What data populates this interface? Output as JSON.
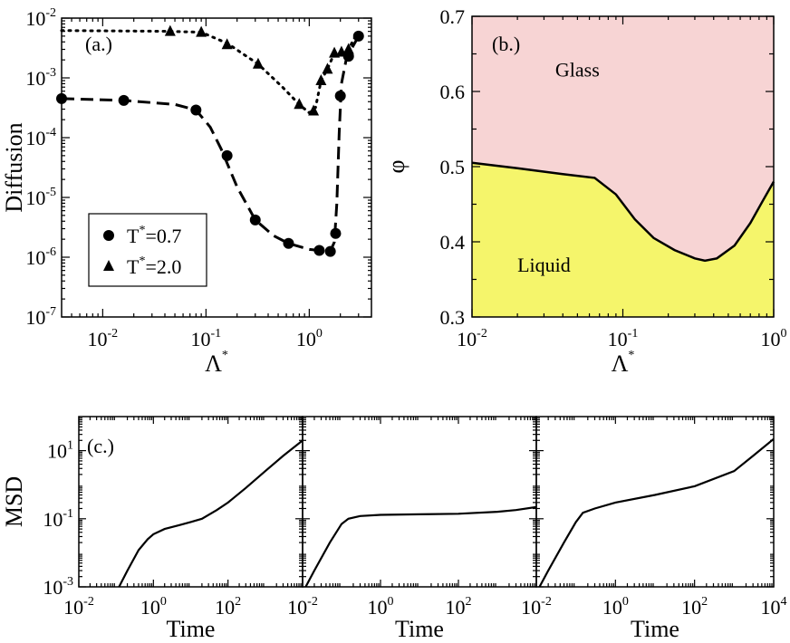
{
  "chart_data": [
    {
      "panel": "a",
      "type": "scatter",
      "label": "(a.)",
      "xlabel": "Λ",
      "xlabel_sup": "*",
      "ylabel": "Diffusion",
      "xscale": "log",
      "yscale": "log",
      "xlim": [
        0.004,
        4
      ],
      "ylim": [
        1e-07,
        0.01
      ],
      "xticks": [
        {
          "value": 0.01,
          "base": "10",
          "exp": "-2"
        },
        {
          "value": 0.1,
          "base": "10",
          "exp": "-1"
        },
        {
          "value": 1,
          "base": "10",
          "exp": "0"
        }
      ],
      "yticks": [
        {
          "value": 1e-07,
          "base": "10",
          "exp": "-7"
        },
        {
          "value": 1e-06,
          "base": "10",
          "exp": "-6"
        },
        {
          "value": 1e-05,
          "base": "10",
          "exp": "-5"
        },
        {
          "value": 0.0001,
          "base": "10",
          "exp": "-4"
        },
        {
          "value": 0.001,
          "base": "10",
          "exp": "-3"
        },
        {
          "value": 0.01,
          "base": "10",
          "exp": "-2"
        }
      ],
      "legend": {
        "placement": "bottom-left"
      },
      "series": [
        {
          "name": "T*=0.7",
          "legend_base": "T",
          "legend_sup": "*",
          "legend_rest": "=0.7",
          "marker": "circle",
          "line": "dashed",
          "points": [
            [
              0.004,
              0.00045
            ],
            [
              0.016,
              0.00042
            ],
            [
              0.08,
              0.00029
            ],
            [
              0.16,
              5e-05
            ],
            [
              0.3,
              4.2e-06
            ],
            [
              0.63,
              1.7e-06
            ],
            [
              1.25,
              1.3e-06
            ],
            [
              1.6,
              1.25e-06
            ],
            [
              1.8,
              2.5e-06
            ],
            [
              2.0,
              0.0005
            ],
            [
              2.4,
              0.0023
            ],
            [
              3.0,
              0.005
            ]
          ],
          "curve": [
            [
              0.004,
              0.00045
            ],
            [
              0.016,
              0.00042
            ],
            [
              0.05,
              0.00036
            ],
            [
              0.08,
              0.00029
            ],
            [
              0.11,
              0.00015
            ],
            [
              0.14,
              6.5e-05
            ],
            [
              0.2,
              1.5e-05
            ],
            [
              0.3,
              4.2e-06
            ],
            [
              0.45,
              2.3e-06
            ],
            [
              0.63,
              1.7e-06
            ],
            [
              1.0,
              1.35e-06
            ],
            [
              1.25,
              1.3e-06
            ],
            [
              1.6,
              1.25e-06
            ],
            [
              1.75,
              1.8e-06
            ],
            [
              1.85,
              8e-06
            ],
            [
              1.95,
              0.00012
            ],
            [
              2.05,
              0.0008
            ],
            [
              2.3,
              0.0022
            ],
            [
              2.6,
              0.0032
            ],
            [
              3.0,
              0.005
            ]
          ]
        },
        {
          "name": "T*=2.0",
          "legend_base": "T",
          "legend_sup": "*",
          "legend_rest": "=2.0",
          "marker": "triangle",
          "line": "dotted",
          "points": [
            [
              0.045,
              0.006
            ],
            [
              0.09,
              0.0058
            ],
            [
              0.16,
              0.0036
            ],
            [
              0.32,
              0.0017
            ],
            [
              0.8,
              0.00036
            ],
            [
              1.1,
              0.00028
            ],
            [
              1.3,
              0.0009
            ],
            [
              1.5,
              0.0014
            ],
            [
              1.75,
              0.0026
            ],
            [
              2.05,
              0.0027
            ],
            [
              2.4,
              0.003
            ]
          ],
          "curve": [
            [
              0.004,
              0.0062
            ],
            [
              0.045,
              0.006
            ],
            [
              0.09,
              0.0058
            ],
            [
              0.16,
              0.0038
            ],
            [
              0.32,
              0.0017
            ],
            [
              0.55,
              0.0007
            ],
            [
              0.8,
              0.00036
            ],
            [
              1.0,
              0.00026
            ],
            [
              1.15,
              0.00032
            ],
            [
              1.3,
              0.0009
            ],
            [
              1.5,
              0.0014
            ],
            [
              1.75,
              0.0026
            ],
            [
              2.05,
              0.0027
            ],
            [
              2.4,
              0.003
            ],
            [
              2.8,
              0.005
            ]
          ]
        }
      ]
    },
    {
      "panel": "b",
      "type": "area",
      "label": "(b.)",
      "xlabel": "Λ",
      "xlabel_sup": "*",
      "ylabel": "φ",
      "xscale": "log",
      "yscale": "linear",
      "xlim": [
        0.01,
        1
      ],
      "ylim": [
        0.3,
        0.7
      ],
      "xticks": [
        {
          "value": 0.01,
          "base": "10",
          "exp": "-2"
        },
        {
          "value": 0.1,
          "base": "10",
          "exp": "-1"
        },
        {
          "value": 1,
          "base": "10",
          "exp": "0"
        }
      ],
      "yticks": [
        "0.3",
        "0.4",
        "0.5",
        "0.6",
        "0.7"
      ],
      "regions": [
        {
          "name": "Glass",
          "label": "Glass",
          "color": "#f7d4d4",
          "position": [
            0.05,
            0.62
          ]
        },
        {
          "name": "Liquid",
          "label": "Liquid",
          "color": "#f5f56b",
          "position": [
            0.03,
            0.36
          ]
        }
      ],
      "boundary": [
        [
          0.01,
          0.505
        ],
        [
          0.02,
          0.498
        ],
        [
          0.04,
          0.49
        ],
        [
          0.065,
          0.485
        ],
        [
          0.09,
          0.463
        ],
        [
          0.12,
          0.43
        ],
        [
          0.16,
          0.405
        ],
        [
          0.22,
          0.389
        ],
        [
          0.3,
          0.378
        ],
        [
          0.35,
          0.375
        ],
        [
          0.42,
          0.378
        ],
        [
          0.55,
          0.395
        ],
        [
          0.7,
          0.425
        ],
        [
          0.85,
          0.455
        ],
        [
          1.0,
          0.48
        ]
      ]
    },
    {
      "panel": "c",
      "type": "line",
      "label": "(c.)",
      "ylabel": "MSD",
      "xlabel": "Time",
      "xscale": "log",
      "yscale": "log",
      "xlim": [
        0.01,
        10000
      ],
      "ylim": [
        0.001,
        100
      ],
      "yticks": [
        {
          "value": 0.001,
          "base": "10",
          "exp": "-3"
        },
        {
          "value": 0.1,
          "base": "10",
          "exp": "-1"
        },
        {
          "value": 10,
          "base": "10",
          "exp": "1"
        }
      ],
      "subplots": [
        {
          "xticks": [
            {
              "value": 0.01,
              "base": "10",
              "exp": "-2"
            },
            {
              "value": 1,
              "base": "10",
              "exp": "0"
            },
            {
              "value": 100,
              "base": "10",
              "exp": "2"
            }
          ],
          "curve": [
            [
              0.12,
              0.001
            ],
            [
              0.2,
              0.003
            ],
            [
              0.4,
              0.012
            ],
            [
              0.7,
              0.025
            ],
            [
              1,
              0.035
            ],
            [
              2,
              0.05
            ],
            [
              5,
              0.065
            ],
            [
              10,
              0.08
            ],
            [
              20,
              0.1
            ],
            [
              50,
              0.18
            ],
            [
              100,
              0.3
            ],
            [
              300,
              0.8
            ],
            [
              1000,
              2.5
            ],
            [
              3000,
              7
            ],
            [
              10000,
              20
            ]
          ]
        },
        {
          "xticks": [
            {
              "value": 0.01,
              "base": "10",
              "exp": "-2"
            },
            {
              "value": 1,
              "base": "10",
              "exp": "0"
            },
            {
              "value": 100,
              "base": "10",
              "exp": "2"
            }
          ],
          "curve": [
            [
              0.012,
              0.001
            ],
            [
              0.02,
              0.003
            ],
            [
              0.05,
              0.02
            ],
            [
              0.1,
              0.07
            ],
            [
              0.15,
              0.1
            ],
            [
              0.3,
              0.12
            ],
            [
              1,
              0.13
            ],
            [
              10,
              0.135
            ],
            [
              100,
              0.14
            ],
            [
              1000,
              0.16
            ],
            [
              3000,
              0.18
            ],
            [
              10000,
              0.22
            ]
          ]
        },
        {
          "xticks": [
            {
              "value": 0.01,
              "base": "10",
              "exp": "-2"
            },
            {
              "value": 1,
              "base": "10",
              "exp": "0"
            },
            {
              "value": 100,
              "base": "10",
              "exp": "2"
            },
            {
              "value": 10000,
              "base": "10",
              "exp": "4"
            }
          ],
          "curve": [
            [
              0.012,
              0.001
            ],
            [
              0.02,
              0.003
            ],
            [
              0.05,
              0.02
            ],
            [
              0.1,
              0.08
            ],
            [
              0.15,
              0.15
            ],
            [
              0.3,
              0.2
            ],
            [
              1,
              0.3
            ],
            [
              10,
              0.5
            ],
            [
              100,
              0.9
            ],
            [
              1000,
              2.5
            ],
            [
              3000,
              7
            ],
            [
              10000,
              22
            ]
          ]
        }
      ]
    }
  ]
}
